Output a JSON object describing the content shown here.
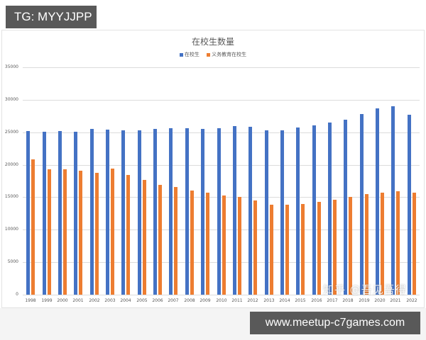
{
  "overlay": {
    "tg_label": "TG: MYYJJPP",
    "footer_url": "www.meetup-c7games.com",
    "watermark": "知乎 @吾见吾得"
  },
  "colors": {
    "series_total": "#4472c4",
    "series_compulsory": "#ed7d31",
    "grid": "#dcdcdc"
  },
  "chart_data": {
    "type": "bar",
    "title": "在校生数量",
    "xlabel": "",
    "ylabel": "",
    "ylim": [
      0,
      35000
    ],
    "yticks": [
      0,
      5000,
      10000,
      15000,
      20000,
      25000,
      30000,
      35000
    ],
    "grid": true,
    "legend_position": "top",
    "categories": [
      "1998",
      "1999",
      "2000",
      "2001",
      "2002",
      "2003",
      "2004",
      "2005",
      "2006",
      "2007",
      "2008",
      "2009",
      "2010",
      "2011",
      "2012",
      "2013",
      "2014",
      "2015",
      "2016",
      "2017",
      "2018",
      "2019",
      "2020",
      "2021",
      "2022"
    ],
    "series": [
      {
        "name": "在校生",
        "color": "#4472c4",
        "values": [
          25200,
          25100,
          25200,
          25050,
          25500,
          25450,
          25350,
          25350,
          25550,
          25650,
          25600,
          25550,
          25650,
          25950,
          25800,
          25250,
          25350,
          25700,
          26050,
          26450,
          26950,
          27750,
          28650,
          28950,
          27700
        ]
      },
      {
        "name": "义务教育在校生",
        "color": "#ed7d31",
        "values": [
          20850,
          19300,
          19250,
          19050,
          18800,
          19400,
          18450,
          17650,
          16950,
          16550,
          16050,
          15700,
          15300,
          15000,
          14500,
          13850,
          13850,
          14000,
          14250,
          14600,
          15050,
          15450,
          15700,
          15900,
          15750
        ]
      }
    ]
  }
}
